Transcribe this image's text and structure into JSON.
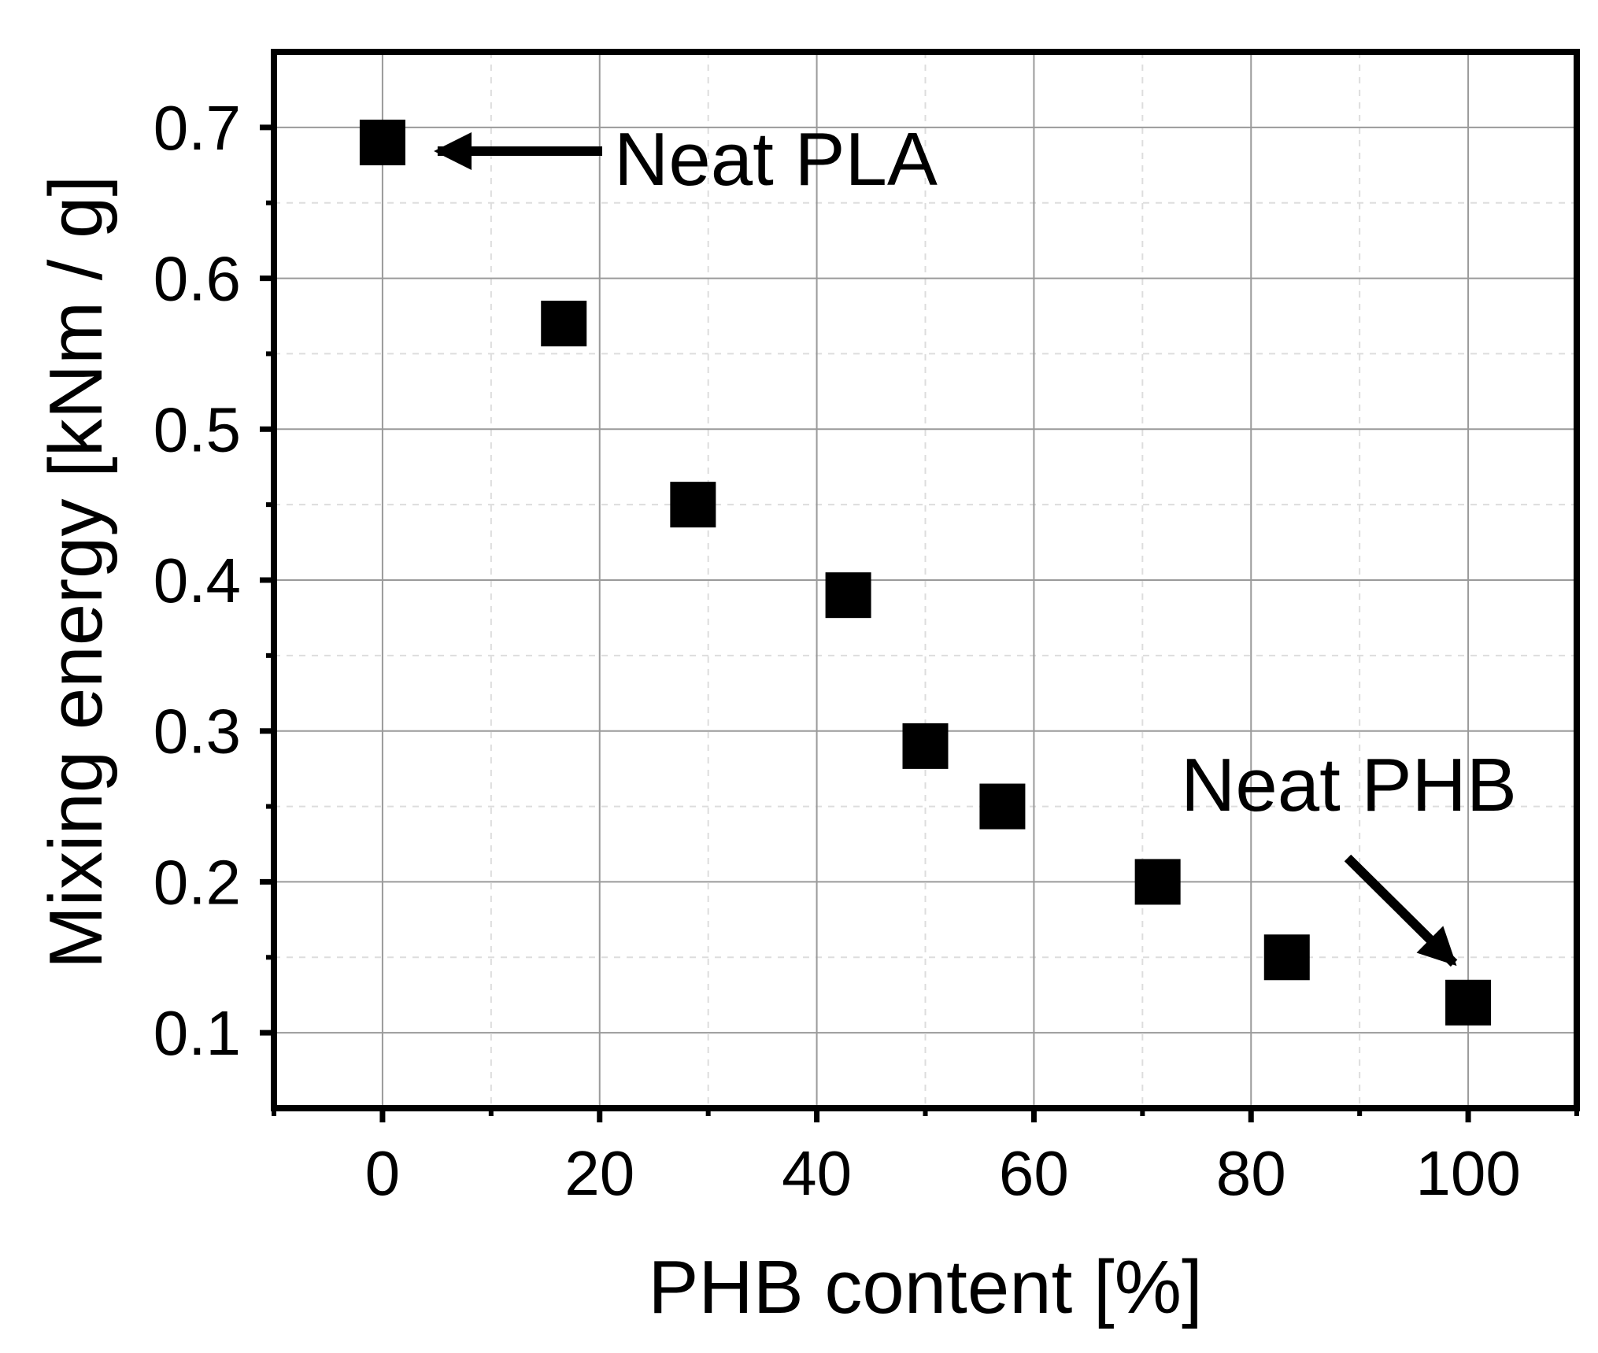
{
  "chart_data": {
    "type": "scatter",
    "xlabel": "PHB content [%]",
    "ylabel": "Mixing energy [kNm / g]",
    "xlim": [
      -10,
      110
    ],
    "ylim": [
      0.05,
      0.75
    ],
    "x_ticks": [
      0,
      20,
      40,
      60,
      80,
      100
    ],
    "y_ticks": [
      0.1,
      0.2,
      0.3,
      0.4,
      0.5,
      0.6,
      0.7
    ],
    "x_tick_labels": [
      "0",
      "20",
      "40",
      "60",
      "80",
      "100"
    ],
    "y_tick_labels": [
      "0.1",
      "0.2",
      "0.3",
      "0.4",
      "0.5",
      "0.6",
      "0.7"
    ],
    "grid": true,
    "marker": "square",
    "marker_color": "#000000",
    "points": [
      {
        "x": 0,
        "y": 0.69
      },
      {
        "x": 16.7,
        "y": 0.57
      },
      {
        "x": 28.6,
        "y": 0.45
      },
      {
        "x": 42.9,
        "y": 0.39
      },
      {
        "x": 50,
        "y": 0.29
      },
      {
        "x": 57.1,
        "y": 0.25
      },
      {
        "x": 71.4,
        "y": 0.2
      },
      {
        "x": 83.3,
        "y": 0.15
      },
      {
        "x": 100,
        "y": 0.12
      }
    ],
    "annotations": [
      {
        "text": "Neat PLA",
        "target": {
          "x": 0,
          "y": 0.69
        }
      },
      {
        "text": "Neat PHB",
        "target": {
          "x": 100,
          "y": 0.12
        }
      }
    ]
  }
}
